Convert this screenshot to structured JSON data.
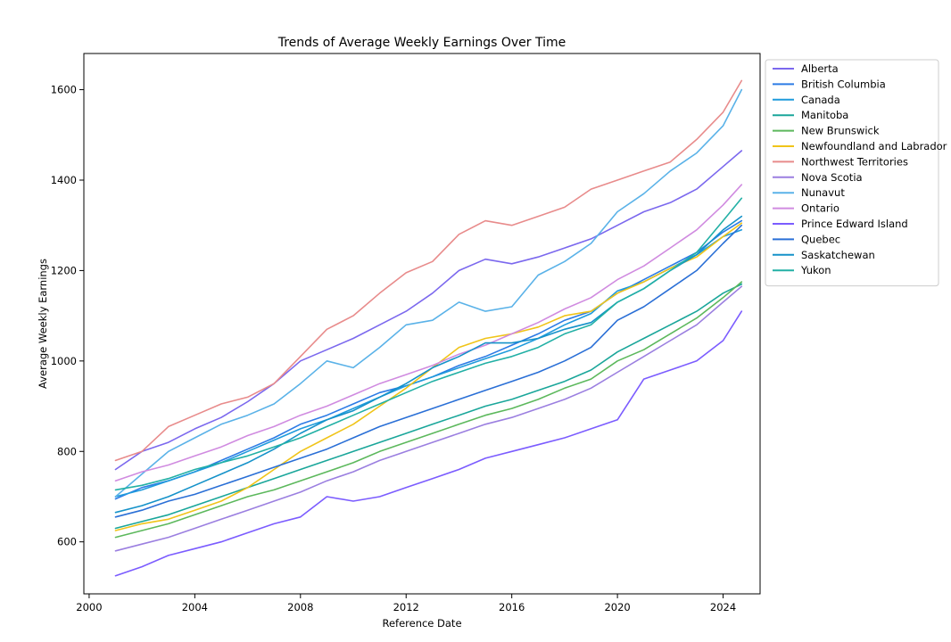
{
  "chart_data": {
    "type": "line",
    "title": "Trends of Average Weekly Earnings Over Time",
    "xlabel": "Reference Date",
    "ylabel": "Average Weekly Earnings",
    "xlim": [
      1999.8,
      2025.4
    ],
    "ylim": [
      485,
      1680
    ],
    "x_ticks": [
      2000,
      2004,
      2008,
      2012,
      2016,
      2020,
      2024
    ],
    "y_ticks": [
      600,
      800,
      1000,
      1200,
      1400,
      1600
    ],
    "grid": false,
    "legend_position": "outside-right-top",
    "series": [
      {
        "name": "Alberta",
        "color": "#7b68ee",
        "x": [
          2001.0,
          2002.0,
          2003.0,
          2004.0,
          2005.0,
          2006.0,
          2007.0,
          2008.0,
          2009.0,
          2010.0,
          2011.0,
          2012.0,
          2013.0,
          2014.0,
          2015.0,
          2016.0,
          2017.0,
          2018.0,
          2019.0,
          2020.0,
          2021.0,
          2022.0,
          2023.0,
          2024.0,
          2024.7
        ],
        "y": [
          760,
          800,
          820,
          850,
          875,
          910,
          950,
          1000,
          1025,
          1050,
          1080,
          1110,
          1150,
          1200,
          1225,
          1215,
          1230,
          1250,
          1270,
          1300,
          1330,
          1350,
          1380,
          1430,
          1465
        ]
      },
      {
        "name": "British Columbia",
        "color": "#2c7be5",
        "x": [
          2001.0,
          2002.0,
          2003.0,
          2004.0,
          2005.0,
          2006.0,
          2007.0,
          2008.0,
          2009.0,
          2010.0,
          2011.0,
          2012.0,
          2013.0,
          2014.0,
          2015.0,
          2016.0,
          2017.0,
          2018.0,
          2019.0,
          2020.0,
          2021.0,
          2022.0,
          2023.0,
          2024.0,
          2024.7
        ],
        "y": [
          695,
          720,
          735,
          755,
          780,
          805,
          830,
          860,
          880,
          905,
          930,
          945,
          965,
          990,
          1010,
          1035,
          1060,
          1090,
          1110,
          1150,
          1180,
          1210,
          1240,
          1285,
          1310
        ]
      },
      {
        "name": "Canada",
        "color": "#1f9bdc",
        "x": [
          2001.0,
          2002.0,
          2003.0,
          2004.0,
          2005.0,
          2006.0,
          2007.0,
          2008.0,
          2009.0,
          2010.0,
          2011.0,
          2012.0,
          2013.0,
          2014.0,
          2015.0,
          2016.0,
          2017.0,
          2018.0,
          2019.0,
          2020.0,
          2021.0,
          2022.0,
          2023.0,
          2024.0,
          2024.7
        ],
        "y": [
          700,
          715,
          735,
          755,
          775,
          800,
          825,
          850,
          870,
          895,
          920,
          945,
          965,
          985,
          1005,
          1025,
          1050,
          1080,
          1105,
          1155,
          1175,
          1205,
          1235,
          1275,
          1290
        ]
      },
      {
        "name": "Manitoba",
        "color": "#1aa69a",
        "x": [
          2001.0,
          2002.0,
          2003.0,
          2004.0,
          2005.0,
          2006.0,
          2007.0,
          2008.0,
          2009.0,
          2010.0,
          2011.0,
          2012.0,
          2013.0,
          2014.0,
          2015.0,
          2016.0,
          2017.0,
          2018.0,
          2019.0,
          2020.0,
          2021.0,
          2022.0,
          2023.0,
          2024.0,
          2024.7
        ],
        "y": [
          630,
          645,
          660,
          680,
          700,
          720,
          740,
          760,
          780,
          800,
          820,
          840,
          860,
          880,
          900,
          915,
          935,
          955,
          980,
          1020,
          1050,
          1080,
          1110,
          1150,
          1170
        ]
      },
      {
        "name": "New Brunswick",
        "color": "#5cb85c",
        "x": [
          2001.0,
          2002.0,
          2003.0,
          2004.0,
          2005.0,
          2006.0,
          2007.0,
          2008.0,
          2009.0,
          2010.0,
          2011.0,
          2012.0,
          2013.0,
          2014.0,
          2015.0,
          2016.0,
          2017.0,
          2018.0,
          2019.0,
          2020.0,
          2021.0,
          2022.0,
          2023.0,
          2024.0,
          2024.7
        ],
        "y": [
          610,
          625,
          640,
          660,
          680,
          700,
          715,
          735,
          755,
          775,
          800,
          820,
          840,
          860,
          880,
          895,
          915,
          940,
          960,
          1000,
          1025,
          1060,
          1095,
          1140,
          1175
        ]
      },
      {
        "name": "Newfoundland and Labrador",
        "color": "#f0c419",
        "x": [
          2001.0,
          2002.0,
          2003.0,
          2004.0,
          2005.0,
          2006.0,
          2007.0,
          2008.0,
          2009.0,
          2010.0,
          2011.0,
          2012.0,
          2013.0,
          2014.0,
          2015.0,
          2016.0,
          2017.0,
          2018.0,
          2019.0,
          2020.0,
          2021.0,
          2022.0,
          2023.0,
          2024.0,
          2024.7
        ],
        "y": [
          625,
          640,
          650,
          670,
          690,
          720,
          760,
          800,
          830,
          860,
          900,
          940,
          985,
          1030,
          1050,
          1060,
          1075,
          1100,
          1110,
          1150,
          1175,
          1205,
          1230,
          1275,
          1305
        ]
      },
      {
        "name": "Northwest Territories",
        "color": "#e88b8b",
        "x": [
          2001.0,
          2002.0,
          2003.0,
          2004.0,
          2005.0,
          2006.0,
          2007.0,
          2008.0,
          2009.0,
          2010.0,
          2011.0,
          2012.0,
          2013.0,
          2014.0,
          2015.0,
          2016.0,
          2017.0,
          2018.0,
          2019.0,
          2020.0,
          2021.0,
          2022.0,
          2023.0,
          2024.0,
          2024.7
        ],
        "y": [
          780,
          800,
          855,
          880,
          905,
          920,
          950,
          1010,
          1070,
          1100,
          1150,
          1195,
          1220,
          1280,
          1310,
          1300,
          1320,
          1340,
          1380,
          1400,
          1420,
          1440,
          1490,
          1550,
          1620
        ]
      },
      {
        "name": "Nova Scotia",
        "color": "#9b7fe0",
        "x": [
          2001.0,
          2002.0,
          2003.0,
          2004.0,
          2005.0,
          2006.0,
          2007.0,
          2008.0,
          2009.0,
          2010.0,
          2011.0,
          2012.0,
          2013.0,
          2014.0,
          2015.0,
          2016.0,
          2017.0,
          2018.0,
          2019.0,
          2020.0,
          2021.0,
          2022.0,
          2023.0,
          2024.0,
          2024.7
        ],
        "y": [
          580,
          595,
          610,
          630,
          650,
          670,
          690,
          710,
          735,
          755,
          780,
          800,
          820,
          840,
          860,
          875,
          895,
          915,
          940,
          975,
          1010,
          1045,
          1080,
          1130,
          1165
        ]
      },
      {
        "name": "Nunavut",
        "color": "#5ab2e8",
        "x": [
          2001.0,
          2002.0,
          2003.0,
          2004.0,
          2005.0,
          2006.0,
          2007.0,
          2008.0,
          2009.0,
          2010.0,
          2011.0,
          2012.0,
          2013.0,
          2014.0,
          2015.0,
          2016.0,
          2017.0,
          2018.0,
          2019.0,
          2020.0,
          2021.0,
          2022.0,
          2023.0,
          2024.0,
          2024.7
        ],
        "y": [
          700,
          750,
          800,
          830,
          860,
          880,
          905,
          950,
          1000,
          985,
          1030,
          1080,
          1090,
          1130,
          1110,
          1120,
          1190,
          1220,
          1260,
          1330,
          1370,
          1420,
          1460,
          1520,
          1600
        ]
      },
      {
        "name": "Ontario",
        "color": "#d08be0",
        "x": [
          2001.0,
          2002.0,
          2003.0,
          2004.0,
          2005.0,
          2006.0,
          2007.0,
          2008.0,
          2009.0,
          2010.0,
          2011.0,
          2012.0,
          2013.0,
          2014.0,
          2015.0,
          2016.0,
          2017.0,
          2018.0,
          2019.0,
          2020.0,
          2021.0,
          2022.0,
          2023.0,
          2024.0,
          2024.7
        ],
        "y": [
          735,
          755,
          770,
          790,
          810,
          835,
          855,
          880,
          900,
          925,
          950,
          970,
          990,
          1015,
          1035,
          1060,
          1085,
          1115,
          1140,
          1180,
          1210,
          1250,
          1290,
          1345,
          1390
        ]
      },
      {
        "name": "Prince Edward Island",
        "color": "#7b5cff",
        "x": [
          2001.0,
          2002.0,
          2003.0,
          2004.0,
          2005.0,
          2006.0,
          2007.0,
          2008.0,
          2009.0,
          2010.0,
          2011.0,
          2012.0,
          2013.0,
          2014.0,
          2015.0,
          2016.0,
          2017.0,
          2018.0,
          2019.0,
          2020.0,
          2021.0,
          2022.0,
          2023.0,
          2024.0,
          2024.7
        ],
        "y": [
          525,
          545,
          570,
          585,
          600,
          620,
          640,
          655,
          700,
          690,
          700,
          720,
          740,
          760,
          785,
          800,
          815,
          830,
          850,
          870,
          960,
          980,
          1000,
          1045,
          1110
        ]
      },
      {
        "name": "Quebec",
        "color": "#2a6fd6",
        "x": [
          2001.0,
          2002.0,
          2003.0,
          2004.0,
          2005.0,
          2006.0,
          2007.0,
          2008.0,
          2009.0,
          2010.0,
          2011.0,
          2012.0,
          2013.0,
          2014.0,
          2015.0,
          2016.0,
          2017.0,
          2018.0,
          2019.0,
          2020.0,
          2021.0,
          2022.0,
          2023.0,
          2024.0,
          2024.7
        ],
        "y": [
          655,
          670,
          690,
          705,
          725,
          745,
          765,
          785,
          805,
          830,
          855,
          875,
          895,
          915,
          935,
          955,
          975,
          1000,
          1030,
          1090,
          1120,
          1160,
          1200,
          1260,
          1300
        ]
      },
      {
        "name": "Saskatchewan",
        "color": "#1592c9",
        "x": [
          2001.0,
          2002.0,
          2003.0,
          2004.0,
          2005.0,
          2006.0,
          2007.0,
          2008.0,
          2009.0,
          2010.0,
          2011.0,
          2012.0,
          2013.0,
          2014.0,
          2015.0,
          2016.0,
          2017.0,
          2018.0,
          2019.0,
          2020.0,
          2021.0,
          2022.0,
          2023.0,
          2024.0,
          2024.7
        ],
        "y": [
          665,
          680,
          700,
          725,
          750,
          775,
          805,
          840,
          870,
          890,
          920,
          950,
          985,
          1010,
          1040,
          1040,
          1050,
          1070,
          1085,
          1130,
          1160,
          1200,
          1235,
          1290,
          1320
        ]
      },
      {
        "name": "Yukon",
        "color": "#22b0a5",
        "x": [
          2001.0,
          2002.0,
          2003.0,
          2004.0,
          2005.0,
          2006.0,
          2007.0,
          2008.0,
          2009.0,
          2010.0,
          2011.0,
          2012.0,
          2013.0,
          2014.0,
          2015.0,
          2016.0,
          2017.0,
          2018.0,
          2019.0,
          2020.0,
          2021.0,
          2022.0,
          2023.0,
          2024.0,
          2024.7
        ],
        "y": [
          715,
          725,
          740,
          760,
          775,
          790,
          810,
          830,
          855,
          880,
          905,
          930,
          955,
          975,
          995,
          1010,
          1030,
          1060,
          1080,
          1130,
          1160,
          1200,
          1240,
          1310,
          1360
        ]
      }
    ]
  }
}
